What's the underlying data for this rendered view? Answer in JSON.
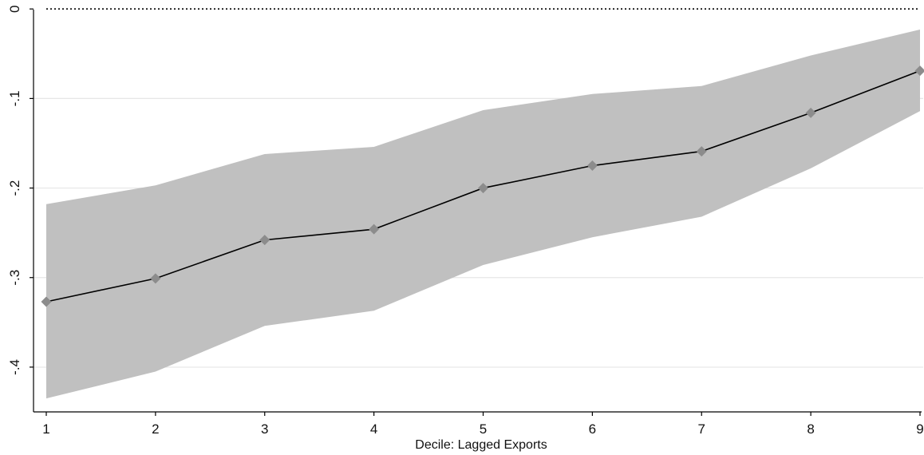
{
  "chart_data": {
    "type": "line",
    "title": "",
    "xlabel": "Decile: Lagged Exports",
    "ylabel": "",
    "x": [
      1,
      2,
      3,
      4,
      5,
      6,
      7,
      8,
      9
    ],
    "x_ticks": [
      "1",
      "2",
      "3",
      "4",
      "5",
      "6",
      "7",
      "8",
      "9"
    ],
    "y_ticks": [
      "0",
      "-.1",
      "-.2",
      "-.3",
      "-.4"
    ],
    "xlim": [
      1,
      9
    ],
    "ylim": [
      -0.45,
      0.01
    ],
    "grid": true,
    "reference_line": 0,
    "series": [
      {
        "values": [
          -0.327,
          -0.301,
          -0.258,
          -0.246,
          -0.2,
          -0.175,
          -0.159,
          -0.116,
          -0.069
        ],
        "ci_lower": [
          -0.435,
          -0.405,
          -0.354,
          -0.337,
          -0.286,
          -0.255,
          -0.232,
          -0.178,
          -0.114
        ],
        "ci_upper": [
          -0.218,
          -0.197,
          -0.162,
          -0.154,
          -0.113,
          -0.095,
          -0.086,
          -0.052,
          -0.023
        ]
      }
    ],
    "colors": {
      "band": "#c0c0c0",
      "line": "#000000",
      "marker": "#8c8c8c",
      "grid": "#e6e6e6",
      "axis": "#000000"
    }
  }
}
